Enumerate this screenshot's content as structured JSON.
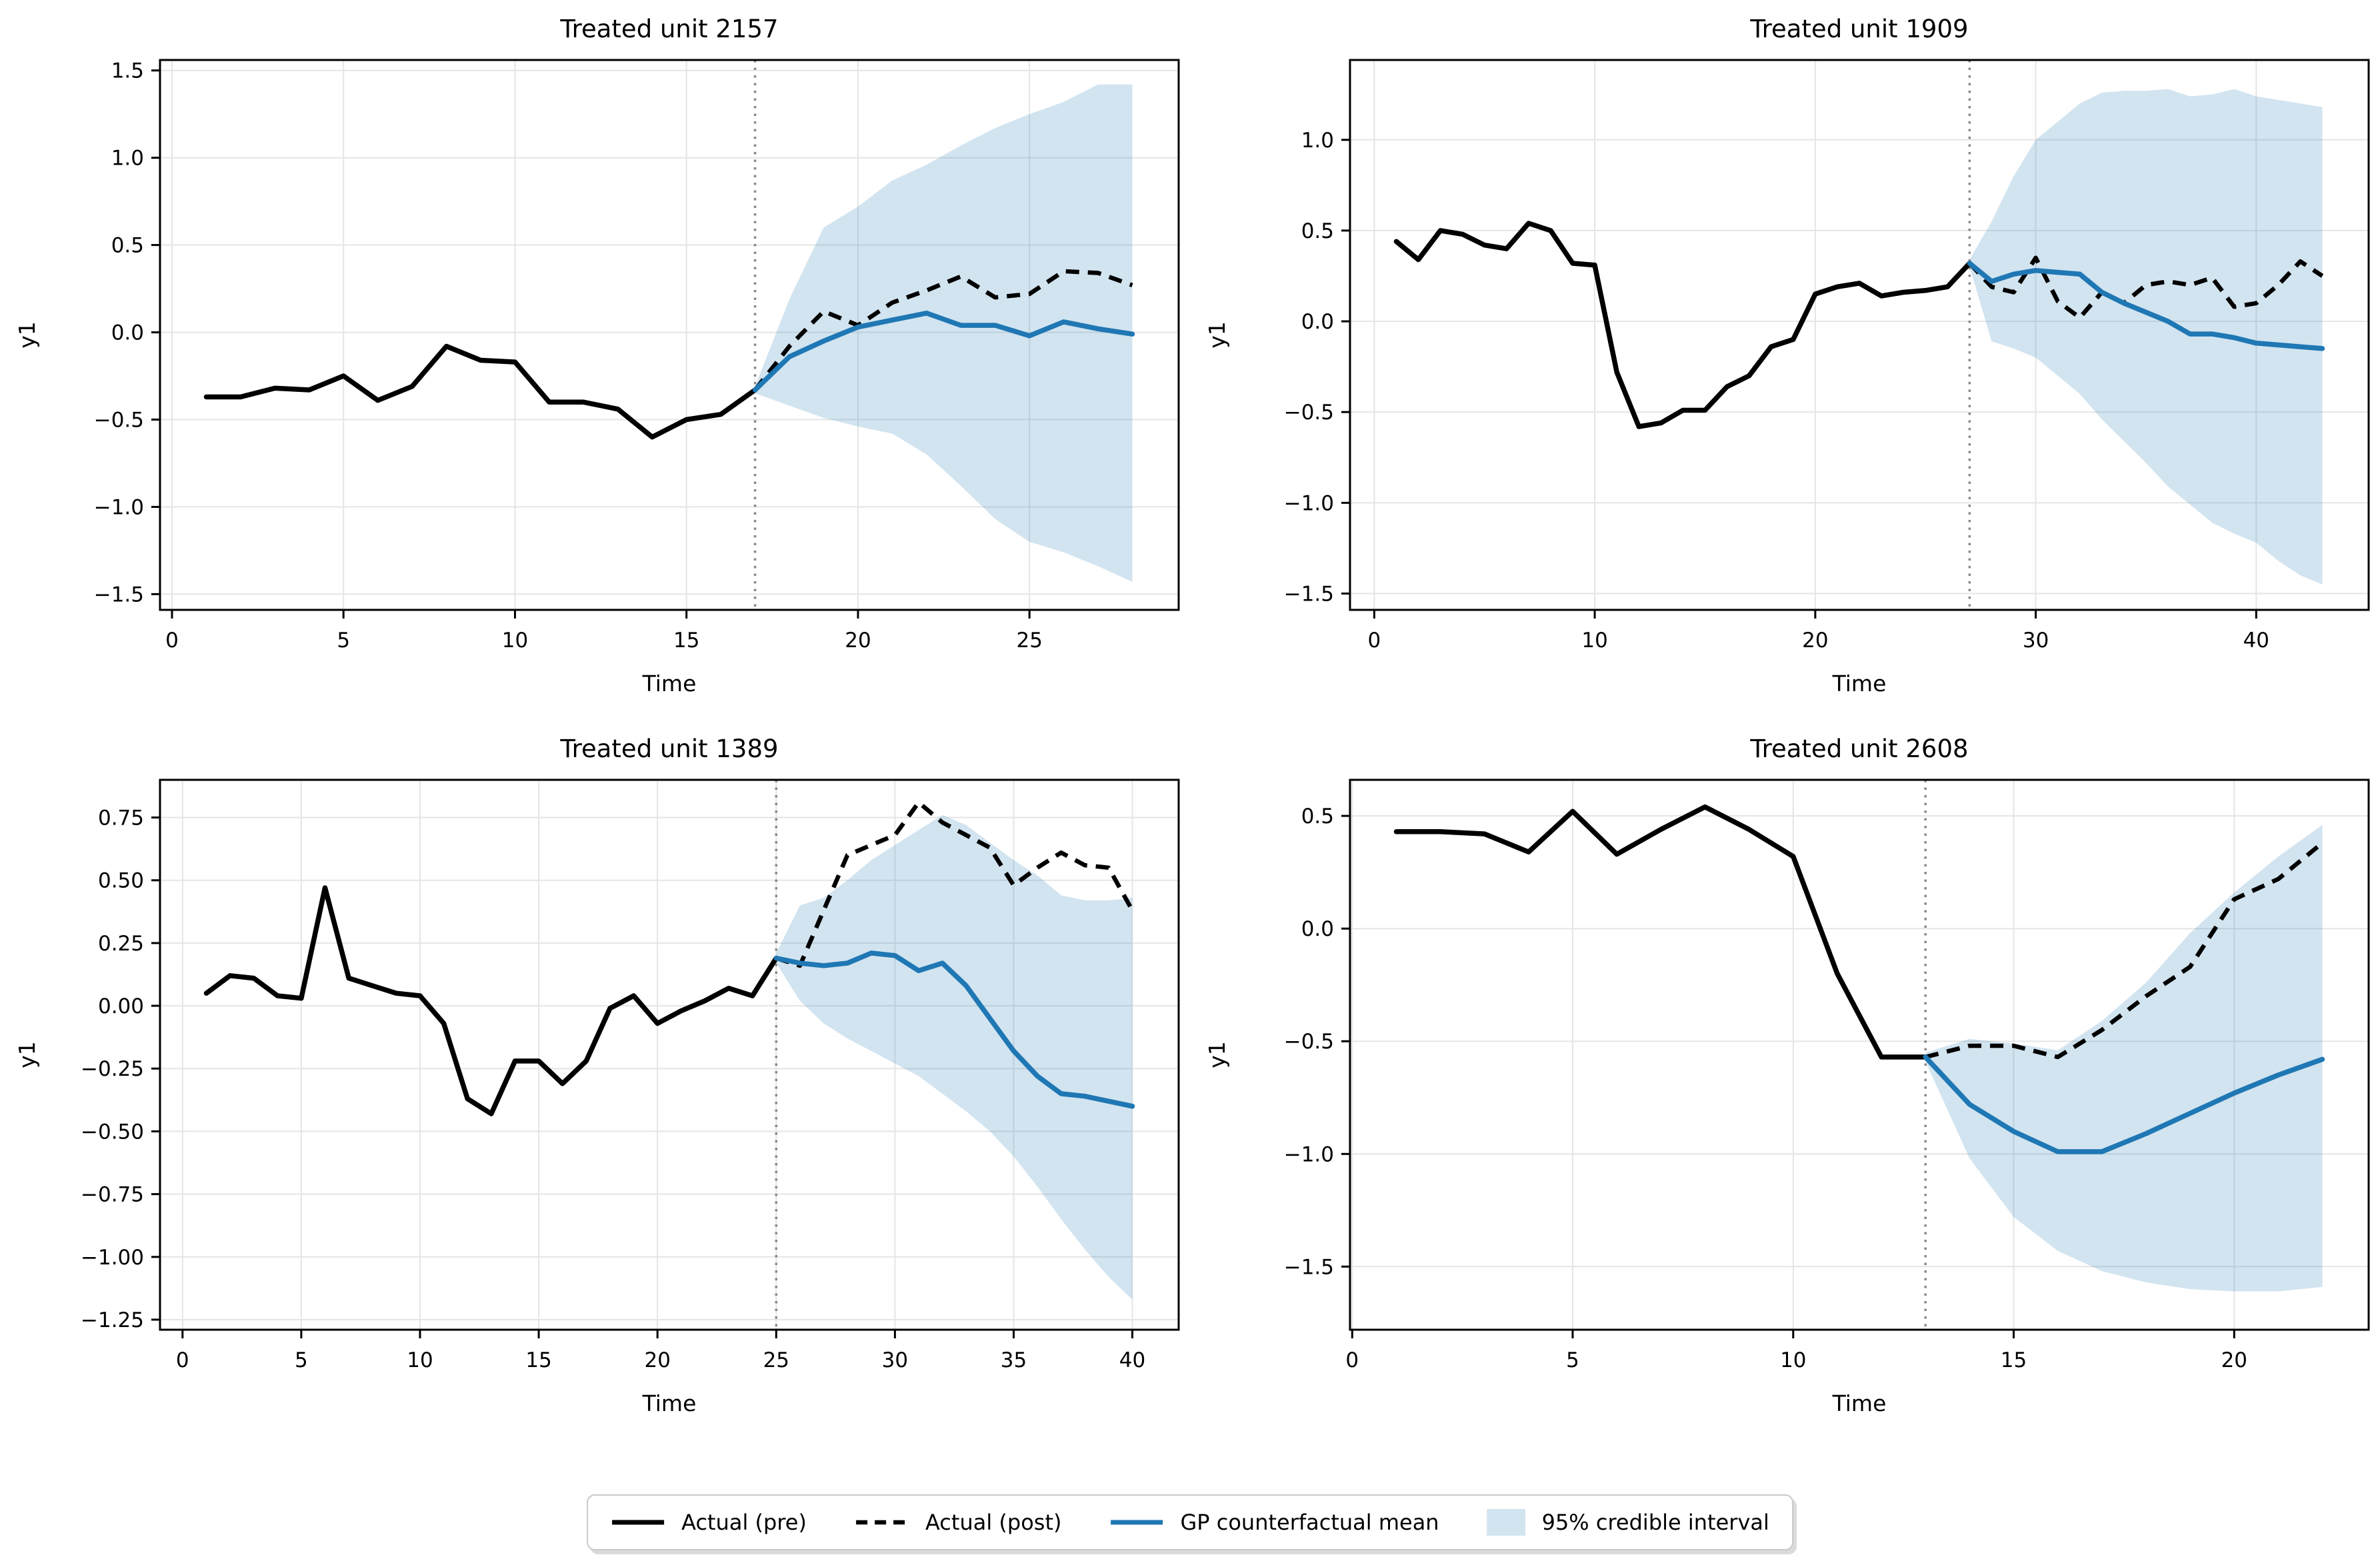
{
  "figure": {
    "background": "#ffffff"
  },
  "colors": {
    "actual_line": "#000000",
    "gp_mean_line": "#1f77b4",
    "credible_band": "rgba(31,119,180,0.2)",
    "credible_band_flat": "#d2e4f0",
    "gridline": "#e5e5e5",
    "treatment_vline": "#888888",
    "spine": "#000000",
    "text": "#000000"
  },
  "legend": {
    "items": [
      {
        "label": "Actual (pre)",
        "swatch": "line-solid-black"
      },
      {
        "label": "Actual (post)",
        "swatch": "line-dashed-black"
      },
      {
        "label": "GP counterfactual mean",
        "swatch": "line-solid-blue"
      },
      {
        "label": "95% credible interval",
        "swatch": "patch-lightblue"
      }
    ]
  },
  "chart_data": [
    {
      "type": "line",
      "title": "Treated unit 2157",
      "xlabel": "Time",
      "ylabel": "y1",
      "grid": true,
      "legend_position": "figure-bottom",
      "xlim": [
        -0.35,
        29.35
      ],
      "ylim": [
        -1.59,
        1.56
      ],
      "xticks": [
        0,
        5,
        10,
        15,
        20,
        25
      ],
      "yticks": [
        {
          "v": 1.5,
          "label": "1.5"
        },
        {
          "v": 1.0,
          "label": "1.0"
        },
        {
          "v": 0.5,
          "label": "0.5"
        },
        {
          "v": 0.0,
          "label": "0.0"
        },
        {
          "v": -0.5,
          "label": "−0.5"
        },
        {
          "v": -1.0,
          "label": "−1.0"
        },
        {
          "v": -1.5,
          "label": "−1.5"
        }
      ],
      "treatment_time": 17,
      "series": {
        "actual_pre": {
          "x": [
            1,
            2,
            3,
            4,
            5,
            6,
            7,
            8,
            9,
            10,
            11,
            12,
            13,
            14,
            15,
            16,
            17
          ],
          "y": [
            -0.37,
            -0.37,
            -0.32,
            -0.33,
            -0.25,
            -0.39,
            -0.31,
            -0.08,
            -0.16,
            -0.17,
            -0.4,
            -0.4,
            -0.44,
            -0.6,
            -0.5,
            -0.47,
            -0.33
          ]
        },
        "actual_post": {
          "x": [
            17,
            18,
            19,
            20,
            21,
            22,
            23,
            24,
            25,
            26,
            27,
            28
          ],
          "y": [
            -0.33,
            -0.08,
            0.12,
            0.04,
            0.17,
            0.24,
            0.32,
            0.2,
            0.22,
            0.35,
            0.34,
            0.27
          ]
        },
        "gp_counterfactual_mean": {
          "x": [
            17,
            18,
            19,
            20,
            21,
            22,
            23,
            24,
            25,
            26,
            27,
            28
          ],
          "y": [
            -0.33,
            -0.14,
            -0.05,
            0.03,
            0.07,
            0.11,
            0.04,
            0.04,
            -0.02,
            0.06,
            0.02,
            -0.01
          ]
        },
        "credible_interval_95": {
          "x": [
            17,
            18,
            19,
            20,
            21,
            22,
            23,
            24,
            25,
            26,
            27,
            28
          ],
          "upper": [
            -0.31,
            0.19,
            0.6,
            0.72,
            0.87,
            0.96,
            1.07,
            1.17,
            1.25,
            1.32,
            1.42,
            1.42
          ],
          "lower": [
            -0.35,
            -0.42,
            -0.49,
            -0.54,
            -0.58,
            -0.7,
            -0.88,
            -1.07,
            -1.2,
            -1.26,
            -1.34,
            -1.43
          ]
        }
      }
    },
    {
      "type": "line",
      "title": "Treated unit 1909",
      "xlabel": "Time",
      "ylabel": "y1",
      "grid": true,
      "legend_position": "figure-bottom",
      "xlim": [
        -1.1,
        45.1
      ],
      "ylim": [
        -1.59,
        1.44
      ],
      "xticks": [
        0,
        10,
        20,
        30,
        40
      ],
      "yticks": [
        {
          "v": 1.0,
          "label": "1.0"
        },
        {
          "v": 0.5,
          "label": "0.5"
        },
        {
          "v": 0.0,
          "label": "0.0"
        },
        {
          "v": -0.5,
          "label": "−0.5"
        },
        {
          "v": -1.0,
          "label": "−1.0"
        },
        {
          "v": -1.5,
          "label": "−1.5"
        }
      ],
      "treatment_time": 27,
      "series": {
        "actual_pre": {
          "x": [
            1,
            2,
            3,
            4,
            5,
            6,
            7,
            8,
            9,
            10,
            11,
            12,
            13,
            14,
            15,
            16,
            17,
            18,
            19,
            20,
            21,
            22,
            23,
            24,
            25,
            26,
            27
          ],
          "y": [
            0.44,
            0.34,
            0.5,
            0.48,
            0.42,
            0.4,
            0.54,
            0.5,
            0.32,
            0.31,
            -0.28,
            -0.58,
            -0.56,
            -0.49,
            -0.49,
            -0.36,
            -0.3,
            -0.14,
            -0.1,
            0.15,
            0.19,
            0.21,
            0.14,
            0.16,
            0.17,
            0.19,
            0.32
          ]
        },
        "actual_post": {
          "x": [
            27,
            28,
            29,
            30,
            31,
            32,
            33,
            34,
            35,
            36,
            37,
            38,
            39,
            40,
            41,
            42,
            43
          ],
          "y": [
            0.32,
            0.19,
            0.16,
            0.35,
            0.11,
            0.02,
            0.16,
            0.1,
            0.2,
            0.22,
            0.2,
            0.24,
            0.08,
            0.1,
            0.2,
            0.33,
            0.25
          ]
        },
        "gp_counterfactual_mean": {
          "x": [
            27,
            28,
            29,
            30,
            31,
            32,
            33,
            34,
            35,
            36,
            37,
            38,
            39,
            40,
            41,
            42,
            43
          ],
          "y": [
            0.32,
            0.22,
            0.26,
            0.28,
            0.27,
            0.26,
            0.16,
            0.1,
            0.05,
            0.0,
            -0.07,
            -0.07,
            -0.09,
            -0.12,
            -0.13,
            -0.14,
            -0.15
          ]
        },
        "credible_interval_95": {
          "x": [
            27,
            28,
            29,
            30,
            31,
            32,
            33,
            34,
            35,
            36,
            37,
            38,
            39,
            40,
            41,
            42,
            43
          ],
          "upper": [
            0.34,
            0.55,
            0.8,
            1.0,
            1.1,
            1.2,
            1.26,
            1.27,
            1.27,
            1.28,
            1.24,
            1.25,
            1.28,
            1.24,
            1.22,
            1.2,
            1.18
          ],
          "lower": [
            0.3,
            -0.11,
            -0.15,
            -0.2,
            -0.3,
            -0.4,
            -0.54,
            -0.66,
            -0.78,
            -0.91,
            -1.01,
            -1.11,
            -1.17,
            -1.22,
            -1.32,
            -1.4,
            -1.45
          ]
        }
      }
    },
    {
      "type": "line",
      "title": "Treated unit 1389",
      "xlabel": "Time",
      "ylabel": "y1",
      "grid": true,
      "legend_position": "figure-bottom",
      "xlim": [
        -0.95,
        41.95
      ],
      "ylim": [
        -1.29,
        0.9
      ],
      "xticks": [
        0,
        5,
        10,
        15,
        20,
        25,
        30,
        35,
        40
      ],
      "yticks": [
        {
          "v": 0.75,
          "label": "0.75"
        },
        {
          "v": 0.5,
          "label": "0.50"
        },
        {
          "v": 0.25,
          "label": "0.25"
        },
        {
          "v": 0.0,
          "label": "0.00"
        },
        {
          "v": -0.25,
          "label": "−0.25"
        },
        {
          "v": -0.5,
          "label": "−0.50"
        },
        {
          "v": -0.75,
          "label": "−0.75"
        },
        {
          "v": -1.0,
          "label": "−1.00"
        },
        {
          "v": -1.25,
          "label": "−1.25"
        }
      ],
      "treatment_time": 25,
      "series": {
        "actual_pre": {
          "x": [
            1,
            2,
            3,
            4,
            5,
            6,
            7,
            8,
            9,
            10,
            11,
            12,
            13,
            14,
            15,
            16,
            17,
            18,
            19,
            20,
            21,
            22,
            23,
            24,
            25
          ],
          "y": [
            0.05,
            0.12,
            0.11,
            0.04,
            0.03,
            0.47,
            0.11,
            0.08,
            0.05,
            0.04,
            -0.07,
            -0.37,
            -0.43,
            -0.22,
            -0.22,
            -0.31,
            -0.22,
            -0.01,
            0.04,
            -0.07,
            -0.02,
            0.02,
            0.07,
            0.04,
            0.19
          ]
        },
        "actual_post": {
          "x": [
            25,
            26,
            27,
            28,
            29,
            30,
            31,
            32,
            33,
            34,
            35,
            36,
            37,
            38,
            39,
            40
          ],
          "y": [
            0.19,
            0.16,
            0.38,
            0.6,
            0.64,
            0.68,
            0.81,
            0.73,
            0.68,
            0.63,
            0.48,
            0.55,
            0.61,
            0.56,
            0.55,
            0.38
          ]
        },
        "gp_counterfactual_mean": {
          "x": [
            25,
            26,
            27,
            28,
            29,
            30,
            31,
            32,
            33,
            34,
            35,
            36,
            37,
            38,
            39,
            40
          ],
          "y": [
            0.19,
            0.17,
            0.16,
            0.17,
            0.21,
            0.2,
            0.14,
            0.17,
            0.08,
            -0.05,
            -0.18,
            -0.28,
            -0.35,
            -0.36,
            -0.38,
            -0.4
          ]
        },
        "credible_interval_95": {
          "x": [
            25,
            26,
            27,
            28,
            29,
            30,
            31,
            32,
            33,
            34,
            35,
            36,
            37,
            38,
            39,
            40
          ],
          "upper": [
            0.21,
            0.4,
            0.43,
            0.5,
            0.58,
            0.64,
            0.7,
            0.76,
            0.72,
            0.65,
            0.58,
            0.52,
            0.44,
            0.42,
            0.42,
            0.43
          ],
          "lower": [
            0.17,
            0.02,
            -0.07,
            -0.13,
            -0.18,
            -0.23,
            -0.28,
            -0.35,
            -0.42,
            -0.5,
            -0.6,
            -0.72,
            -0.85,
            -0.97,
            -1.08,
            -1.17
          ]
        }
      }
    },
    {
      "type": "line",
      "title": "Treated unit 2608",
      "xlabel": "Time",
      "ylabel": "y1",
      "grid": true,
      "legend_position": "figure-bottom",
      "xlim": [
        -0.05,
        23.05
      ],
      "ylim": [
        -1.78,
        0.66
      ],
      "xticks": [
        0,
        5,
        10,
        15,
        20
      ],
      "yticks": [
        {
          "v": 0.5,
          "label": "0.5"
        },
        {
          "v": 0.0,
          "label": "0.0"
        },
        {
          "v": -0.5,
          "label": "−0.5"
        },
        {
          "v": -1.0,
          "label": "−1.0"
        },
        {
          "v": -1.5,
          "label": "−1.5"
        }
      ],
      "treatment_time": 13,
      "series": {
        "actual_pre": {
          "x": [
            1,
            2,
            3,
            4,
            5,
            6,
            7,
            8,
            9,
            10,
            11,
            12,
            13
          ],
          "y": [
            0.43,
            0.43,
            0.42,
            0.34,
            0.52,
            0.33,
            0.44,
            0.54,
            0.44,
            0.32,
            -0.2,
            -0.57,
            -0.57
          ]
        },
        "actual_post": {
          "x": [
            13,
            14,
            15,
            16,
            17,
            18,
            19,
            20,
            21,
            22
          ],
          "y": [
            -0.57,
            -0.52,
            -0.52,
            -0.57,
            -0.45,
            -0.3,
            -0.17,
            0.13,
            0.22,
            0.38
          ]
        },
        "gp_counterfactual_mean": {
          "x": [
            13,
            14,
            15,
            16,
            17,
            18,
            19,
            20,
            21,
            22
          ],
          "y": [
            -0.57,
            -0.78,
            -0.9,
            -0.99,
            -0.99,
            -0.91,
            -0.82,
            -0.73,
            -0.65,
            -0.58
          ]
        },
        "credible_interval_95": {
          "x": [
            13,
            14,
            15,
            16,
            17,
            18,
            19,
            20,
            21,
            22
          ],
          "upper": [
            -0.55,
            -0.49,
            -0.51,
            -0.54,
            -0.41,
            -0.24,
            -0.02,
            0.16,
            0.32,
            0.46
          ],
          "lower": [
            -0.59,
            -1.02,
            -1.28,
            -1.43,
            -1.52,
            -1.57,
            -1.6,
            -1.61,
            -1.61,
            -1.59
          ]
        }
      }
    }
  ]
}
